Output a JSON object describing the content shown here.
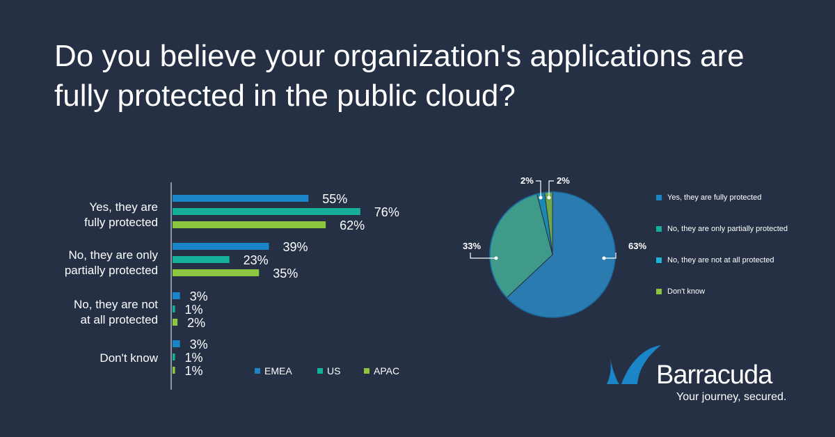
{
  "chart_data": [
    {
      "type": "bar",
      "orientation": "horizontal",
      "title": "Do you believe your organization's applications are fully protected in the public cloud?",
      "categories": [
        [
          "Yes, they are",
          "fully protected"
        ],
        [
          "No, they are only",
          "partially protected"
        ],
        [
          "No, they are not",
          "at all protected"
        ],
        [
          "Don't know"
        ]
      ],
      "series": [
        {
          "name": "EMEA",
          "color": "#1a86c8",
          "values": [
            55,
            39,
            3,
            3
          ]
        },
        {
          "name": "US",
          "color": "#14b09a",
          "values": [
            76,
            23,
            1,
            1
          ]
        },
        {
          "name": "APAC",
          "color": "#8cc63f",
          "values": [
            62,
            35,
            2,
            1
          ]
        }
      ],
      "unit": "%",
      "legend": "bottom"
    },
    {
      "type": "pie",
      "slices": [
        {
          "label": "Yes, they are fully protected",
          "value": 63,
          "color": "#2a7bb0",
          "legend_color": "#1a86c8"
        },
        {
          "label": "No, they are only partially protected",
          "value": 33,
          "color": "#3f9a8a",
          "legend_color": "#14b09a"
        },
        {
          "label": "No, they are not at all protected",
          "value": 2,
          "color": "#1a8ab0",
          "legend_color": "#1fb3d6"
        },
        {
          "label": "Don't know",
          "value": 2,
          "color": "#6ea84a",
          "legend_color": "#8cc63f"
        }
      ],
      "legend": "right",
      "unit": "%"
    }
  ],
  "brand": {
    "name": "Barracuda",
    "tagline": "Your journey, secured."
  }
}
